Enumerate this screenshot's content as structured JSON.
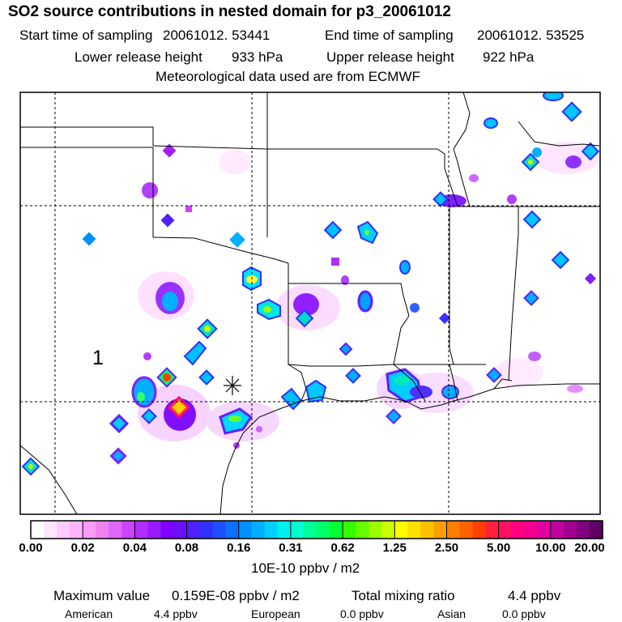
{
  "title": "SO2 source contributions in nested domain for p3_20061012",
  "sampling": {
    "start_label": "Start time of sampling",
    "start_value": "20061012. 53441",
    "end_label": "End time of sampling",
    "end_value": "20061012. 53525"
  },
  "release": {
    "lower_label": "Lower release height",
    "lower_value": "933 hPa",
    "upper_label": "Upper release height",
    "upper_value": "922 hPa"
  },
  "meteo_text": "Meteorological data used are from ECMWF",
  "map": {
    "region_label": "1",
    "release_marker": "release-point-asterisk"
  },
  "colorbar": {
    "tick_labels": [
      "0.00",
      "0.02",
      "0.04",
      "0.08",
      "0.16",
      "0.31",
      "0.62",
      "1.25",
      "2.50",
      "5.00",
      "10.00",
      "20.00"
    ],
    "unit_label": "10E-10 ppbv / m2",
    "colors": [
      "#ffffff",
      "#ffe6ff",
      "#ffccff",
      "#ffb3ff",
      "#f79cf7",
      "#ee82ee",
      "#e066ff",
      "#cc44ff",
      "#b22cff",
      "#9a1aff",
      "#8000ff",
      "#6a10ff",
      "#5020ff",
      "#3030ff",
      "#1f50ff",
      "#0f70ff",
      "#0090ff",
      "#00b0ff",
      "#00d0ff",
      "#00f0f0",
      "#00ffcc",
      "#00ff99",
      "#00ff66",
      "#00ff33",
      "#33ff00",
      "#66ff00",
      "#99ff00",
      "#ccff00",
      "#ffff00",
      "#ffe000",
      "#ffc000",
      "#ffa000",
      "#ff8000",
      "#ff6000",
      "#ff4000",
      "#ff2040",
      "#ff1060",
      "#ff0080",
      "#f00090",
      "#e000a0",
      "#c000a0",
      "#a00090",
      "#800080",
      "#600060"
    ]
  },
  "footer": {
    "max_label": "Maximum value",
    "max_value": "0.159E-08 ppbv / m2",
    "total_label": "Total mixing ratio",
    "total_value": "4.4 ppbv",
    "american_label": "American",
    "american_value": "4.4 ppbv",
    "european_label": "European",
    "european_value": "0.0 ppbv",
    "asian_label": "Asian",
    "asian_value": "0.0 ppbv"
  }
}
